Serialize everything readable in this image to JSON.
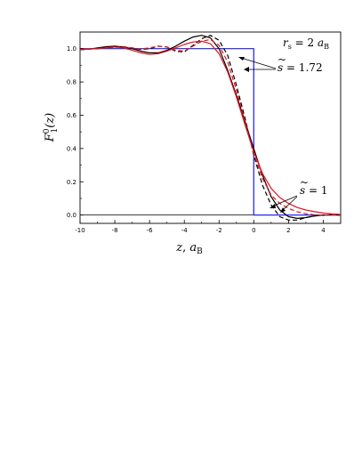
{
  "chart_data": {
    "type": "line",
    "xlabel_parts": {
      "var": "z",
      "sep": ", ",
      "unit": "a",
      "unit_sub": "B"
    },
    "ylabel_parts": {
      "base": "F",
      "sup": "0",
      "sub": "1",
      "arg": "(z)"
    },
    "xlim": [
      -10,
      5
    ],
    "ylim": [
      -0.05,
      1.1
    ],
    "x_ticks": [
      -10,
      -8,
      -6,
      -4,
      -2,
      0,
      2,
      4
    ],
    "x_tick_labels": [
      "-10",
      "-8",
      "-6",
      "-4",
      "-2",
      "0",
      "2",
      "4"
    ],
    "y_ticks": [
      0.0,
      0.2,
      0.4,
      0.6,
      0.8,
      1.0
    ],
    "y_tick_labels": [
      "0.0",
      "0.2",
      "0.4",
      "0.6",
      "0.8",
      "1.0"
    ],
    "grid": false,
    "annotations": {
      "rs": {
        "left": "r",
        "left_sub": "s",
        "eq": " = 2 ",
        "unit": "a",
        "unit_sub": "B"
      },
      "s172": {
        "var": "s",
        "tilde": "~",
        "text": " = 1.72"
      },
      "s1": {
        "var": "s",
        "tilde": "~",
        "text": " = 1"
      }
    },
    "series": [
      {
        "color": "#1a1aff",
        "dash": "none",
        "width": 1.2,
        "x": [
          -10,
          0,
          0,
          5
        ],
        "y": [
          1.0,
          1.0,
          0.0,
          0.0
        ]
      },
      {
        "color": "#000000",
        "dash": "none",
        "width": 1.2,
        "x": [
          -10,
          -9.5,
          -9,
          -8.5,
          -8,
          -7.5,
          -7,
          -6.5,
          -6,
          -5.5,
          -5,
          -4.5,
          -4,
          -3.5,
          -3,
          -2.5,
          -2,
          -1.5,
          -1,
          -0.5,
          0,
          0.5,
          1,
          1.5,
          2,
          2.5,
          3,
          3.5,
          4,
          4.5,
          5
        ],
        "y": [
          0.995,
          0.997,
          1.005,
          1.012,
          1.015,
          1.01,
          1.0,
          0.985,
          0.975,
          0.975,
          0.99,
          1.015,
          1.045,
          1.07,
          1.08,
          1.065,
          1.0,
          0.87,
          0.72,
          0.56,
          0.4,
          0.24,
          0.11,
          0.03,
          -0.01,
          -0.02,
          -0.015,
          -0.005,
          0.0,
          0.002,
          0.0
        ]
      },
      {
        "color": "#000000",
        "dash": "5,3",
        "width": 1.2,
        "x": [
          -10,
          -9.5,
          -9,
          -8.5,
          -8,
          -7.5,
          -7,
          -6.5,
          -6,
          -5.5,
          -5,
          -4.5,
          -4,
          -3.5,
          -3,
          -2.5,
          -2,
          -1.5,
          -1,
          -0.5,
          0,
          0.5,
          1,
          1.5,
          2,
          2.5,
          3,
          3.5,
          4,
          4.5,
          5
        ],
        "y": [
          0.993,
          0.998,
          1.0,
          1.005,
          1.01,
          1.012,
          1.005,
          0.995,
          1.0,
          1.015,
          1.01,
          0.985,
          0.98,
          1.02,
          1.06,
          1.08,
          1.05,
          0.96,
          0.78,
          0.58,
          0.36,
          0.18,
          0.06,
          -0.01,
          -0.03,
          -0.03,
          -0.015,
          -0.005,
          0.0,
          0.002,
          0.0
        ]
      },
      {
        "color": "#e0141e",
        "dash": "none",
        "width": 1.2,
        "x": [
          -10,
          -9.5,
          -9,
          -8.5,
          -8,
          -7.5,
          -7,
          -6.5,
          -6,
          -5.5,
          -5,
          -4.5,
          -4,
          -3.5,
          -3,
          -2.5,
          -2,
          -1.5,
          -1,
          -0.5,
          0,
          0.5,
          1,
          1.5,
          2,
          2.5,
          3,
          3.5,
          4,
          4.5,
          5
        ],
        "y": [
          0.995,
          0.998,
          1.0,
          1.005,
          1.01,
          1.005,
          0.99,
          0.975,
          0.965,
          0.97,
          0.985,
          1.005,
          1.025,
          1.04,
          1.045,
          1.03,
          0.97,
          0.86,
          0.71,
          0.54,
          0.38,
          0.25,
          0.16,
          0.105,
          0.07,
          0.045,
          0.03,
          0.02,
          0.012,
          0.007,
          0.004
        ]
      },
      {
        "color": "#e0141e",
        "dash": "5,3",
        "width": 1.2,
        "x": [
          -10,
          -9.5,
          -9,
          -8.5,
          -8,
          -7.5,
          -7,
          -6.5,
          -6,
          -5.5,
          -5,
          -4.5,
          -4,
          -3.5,
          -3,
          -2.5,
          -2,
          -1.5,
          -1,
          -0.5,
          0,
          0.5,
          1,
          1.5,
          2,
          2.5,
          3,
          3.5,
          4,
          4.5,
          5
        ],
        "y": [
          0.993,
          0.997,
          1.0,
          1.003,
          1.008,
          1.01,
          1.005,
          0.998,
          1.005,
          1.015,
          1.01,
          0.99,
          0.985,
          1.015,
          1.045,
          1.055,
          1.02,
          0.92,
          0.75,
          0.56,
          0.37,
          0.22,
          0.12,
          0.07,
          0.04,
          0.02,
          0.008,
          0.002,
          0.0,
          0.0,
          0.0
        ]
      }
    ]
  }
}
